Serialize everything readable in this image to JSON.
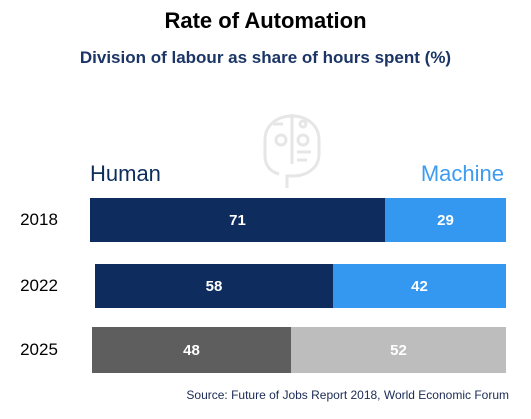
{
  "chart_data": {
    "type": "bar",
    "orientation": "horizontal",
    "stacked": true,
    "title": "Rate of Automation",
    "subtitle": "Division of labour as share of hours spent (%)",
    "legend": {
      "left": "Human",
      "right": "Machine"
    },
    "categories": [
      "2018",
      "2022",
      "2025"
    ],
    "series": [
      {
        "name": "Human",
        "values": [
          71,
          58,
          48
        ]
      },
      {
        "name": "Machine",
        "values": [
          29,
          42,
          52
        ]
      }
    ],
    "source": "Source: Future of Jobs Report 2018, World Economic Forum",
    "grid": false,
    "colors": {
      "human": [
        "#0e2d5e",
        "#0e2d5e",
        "#5e5e5e"
      ],
      "machine": [
        "#3498f0",
        "#3498f0",
        "#bdbdbd"
      ]
    }
  },
  "watermark_icon": "robot-head-icon"
}
